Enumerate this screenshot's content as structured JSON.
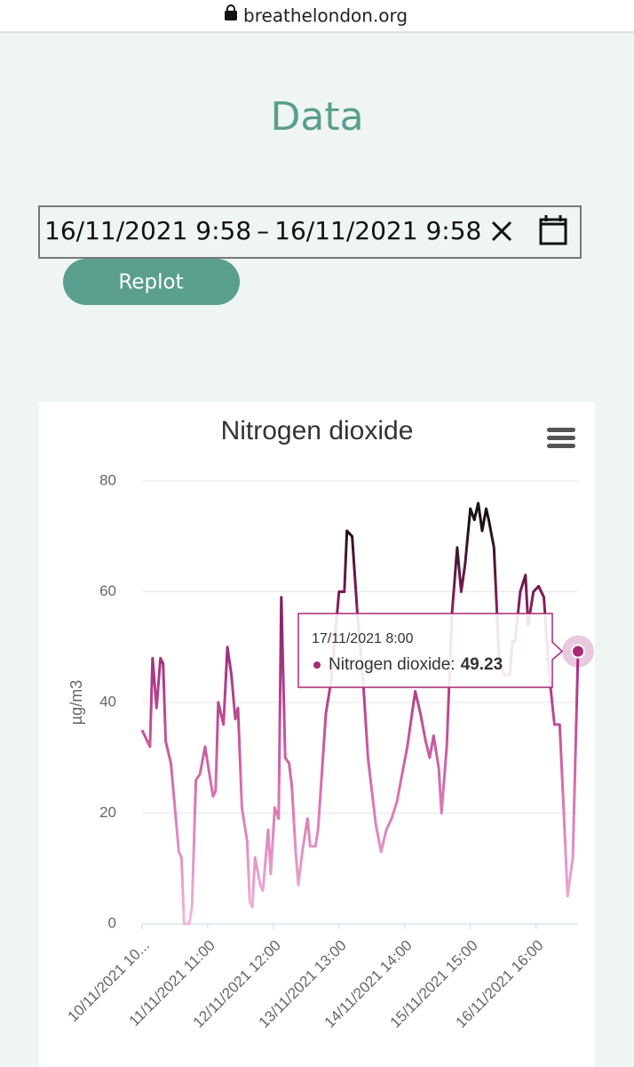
{
  "browser": {
    "url": "breathelondon.org"
  },
  "page": {
    "heading": "Data",
    "date_range": {
      "from": "16/11/2021 9:58",
      "separator": "–",
      "to": "16/11/2021 9:58"
    },
    "button": "Replot"
  },
  "chart_data": {
    "type": "line",
    "title": "Nitrogen dioxide",
    "y_label": "µg/m3",
    "ylim": [
      0,
      80
    ],
    "yticks": [
      0,
      20,
      40,
      60,
      80
    ],
    "xlim": [
      0,
      166
    ],
    "xticks": [
      {
        "value": 0,
        "label": "10/11/2021 10..."
      },
      {
        "value": 25,
        "label": "11/11/2021 11:00"
      },
      {
        "value": 50,
        "label": "12/11/2021 12:00"
      },
      {
        "value": 75,
        "label": "13/11/2021 13:00"
      },
      {
        "value": 100,
        "label": "14/11/2021 14:00"
      },
      {
        "value": 125,
        "label": "15/11/2021 15:00"
      },
      {
        "value": 150,
        "label": "16/11/2021 16:00"
      }
    ],
    "grid": true,
    "series": [
      {
        "name": "Nitrogen dioxide",
        "color": "#a8287a",
        "x": [
          0,
          2,
          3,
          4,
          5.5,
          7,
          8,
          9,
          11,
          14,
          15,
          16,
          18,
          19,
          20.5,
          22,
          24,
          25,
          27,
          28,
          29,
          31,
          32.5,
          34,
          35.5,
          36.5,
          38,
          40,
          41,
          42,
          43,
          45,
          46,
          48,
          49,
          50.5,
          52,
          53,
          54.5,
          56,
          57,
          58.5,
          59.5,
          61,
          63,
          64,
          66,
          67,
          70,
          72,
          75,
          77,
          78,
          80,
          82,
          84,
          86,
          89,
          91,
          93,
          95,
          97,
          99,
          101,
          104,
          106,
          108,
          109.5,
          111,
          113,
          114,
          116,
          118,
          120,
          121.5,
          123,
          125,
          126.5,
          128,
          129.5,
          131,
          132,
          134,
          136,
          138,
          140,
          141,
          142,
          144,
          146,
          147,
          149,
          151,
          153,
          155,
          157,
          159,
          160.5,
          162,
          164,
          166
        ],
        "values": [
          35,
          33,
          32,
          48,
          39,
          48,
          47,
          33,
          29,
          13,
          12,
          0,
          0,
          3,
          26,
          27,
          32,
          29,
          23,
          24,
          40,
          36,
          50,
          45,
          37,
          39,
          21,
          15,
          4,
          3,
          12,
          7,
          6,
          17,
          9,
          21,
          19,
          59,
          30,
          29,
          25,
          13,
          7,
          13,
          19,
          14,
          14,
          17,
          38,
          44,
          60,
          60,
          71,
          70,
          56,
          45,
          30,
          18,
          13,
          17,
          19,
          22,
          27,
          32,
          42,
          38,
          33,
          30,
          34,
          28,
          20,
          32,
          56,
          68,
          60,
          65,
          75,
          73,
          76,
          71,
          75,
          73,
          68,
          47,
          45,
          45,
          51,
          51,
          60,
          63,
          54,
          60,
          61,
          59,
          45,
          36,
          36,
          21,
          5,
          12,
          49.23
        ]
      }
    ],
    "tooltip": {
      "x": "17/11/2021 8:00",
      "label": "Nitrogen dioxide:"
    }
  }
}
